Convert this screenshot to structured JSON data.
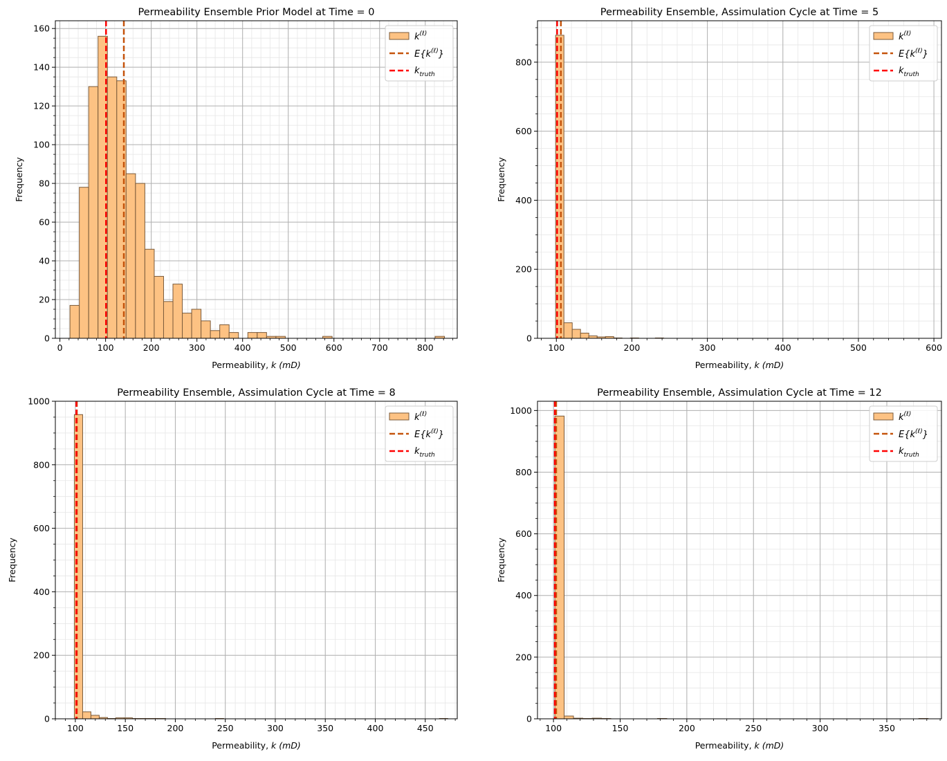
{
  "colors": {
    "bar_fill": "#fdc283",
    "bar_edge": "#7a5a3a",
    "mean_line": "#c5530b",
    "truth_line": "#ff0000",
    "grid_major": "#b0b0b0",
    "grid_minor": "#e6e6e6"
  },
  "legend_labels": {
    "ensemble": "k",
    "ensemble_sup": "(ℓ)",
    "mean_prefix": "E{k",
    "mean_sup": "(ℓ)",
    "mean_suffix": "}",
    "truth": "k",
    "truth_sub": "truth"
  },
  "chart_data": [
    {
      "type": "bar",
      "title": "Permeability Ensemble Prior Model at Time = 0",
      "xlabel_prefix": "Permeability, ",
      "xlabel_math": "k (mD)",
      "ylabel": "Frequency",
      "xlim": [
        -10,
        870
      ],
      "ylim": [
        0,
        164
      ],
      "xticks": [
        0,
        100,
        200,
        300,
        400,
        500,
        600,
        700,
        800
      ],
      "xminor_step": 20,
      "yticks": [
        0,
        20,
        40,
        60,
        80,
        100,
        120,
        140,
        160
      ],
      "yminor_step": 5,
      "legend_position": "top-right",
      "bin_width": 20.5,
      "bin_edges_start": 22,
      "values": [
        17,
        78,
        130,
        156,
        135,
        133,
        85,
        80,
        46,
        32,
        19,
        28,
        13,
        15,
        9,
        4,
        7,
        3,
        0,
        3,
        3,
        1,
        1,
        0,
        0,
        0,
        0,
        1,
        0,
        0,
        0,
        0,
        0,
        0,
        0,
        0,
        0,
        0,
        0,
        1
      ],
      "mean": 140,
      "truth": 101
    },
    {
      "type": "bar",
      "title": "Permeability Ensemble, Assimulation Cycle at Time = 5",
      "xlabel_prefix": "Permeability, ",
      "xlabel_math": "k (mD)",
      "ylabel": "Frequency",
      "xlim": [
        75,
        610
      ],
      "ylim": [
        0,
        920
      ],
      "xticks": [
        100,
        200,
        300,
        400,
        500,
        600
      ],
      "xminor_step": 20,
      "yticks": [
        0,
        200,
        400,
        600,
        800
      ],
      "yminor_step": 50,
      "legend_position": "top-right",
      "bin_width": 11,
      "bin_edges_start": 99,
      "values": [
        878,
        45,
        26,
        15,
        7,
        4,
        5,
        1,
        0,
        1,
        0,
        0,
        1,
        0,
        0,
        0,
        0,
        0,
        0,
        0,
        0,
        0,
        0,
        0,
        0,
        0,
        0,
        0,
        0,
        0,
        0,
        0,
        0,
        0,
        0,
        0,
        0,
        0,
        0,
        0,
        0,
        0,
        0,
        0,
        0,
        0
      ],
      "mean": 106,
      "truth": 101
    },
    {
      "type": "bar",
      "title": "Permeability Ensemble, Assimulation Cycle at Time = 8",
      "xlabel_prefix": "Permeability, ",
      "xlabel_math": "k (mD)",
      "ylabel": "Frequency",
      "xlim": [
        80,
        482
      ],
      "ylim": [
        0,
        1000
      ],
      "xticks": [
        100,
        150,
        200,
        250,
        300,
        350,
        400,
        450
      ],
      "xminor_step": 10,
      "yticks": [
        0,
        200,
        400,
        600,
        800,
        1000
      ],
      "yminor_step": 50,
      "legend_position": "top-right",
      "bin_width": 8.3,
      "bin_edges_start": 99,
      "values": [
        958,
        22,
        11,
        4,
        1,
        3,
        3,
        1,
        1,
        1,
        1,
        0,
        0,
        0,
        0,
        0,
        0,
        1,
        0,
        0,
        0,
        0,
        0,
        0,
        0,
        0,
        0,
        0,
        0,
        0,
        0,
        0,
        0,
        0,
        0,
        0,
        0,
        0,
        0,
        0,
        0,
        0,
        0,
        0,
        1
      ],
      "mean": 101.5,
      "truth": 101
    },
    {
      "type": "bar",
      "title": "Permeability Ensemble, Assimulation Cycle at Time = 12",
      "xlabel_prefix": "Permeability, ",
      "xlabel_math": "k (mD)",
      "ylabel": "Frequency",
      "xlim": [
        88,
        391
      ],
      "ylim": [
        0,
        1030
      ],
      "xticks": [
        100,
        150,
        200,
        250,
        300,
        350
      ],
      "xminor_step": 10,
      "yticks": [
        0,
        200,
        400,
        600,
        800,
        1000
      ],
      "yminor_step": 50,
      "legend_position": "top-right",
      "bin_width": 7.0,
      "bin_edges_start": 101,
      "values": [
        982,
        9,
        2,
        1,
        2,
        1,
        0,
        0,
        0,
        0,
        0,
        1,
        0,
        0,
        0,
        0,
        0,
        0,
        0,
        0,
        0,
        0,
        0,
        0,
        0,
        0,
        0,
        0,
        0,
        0,
        0,
        0,
        0,
        0,
        0,
        0,
        0,
        0,
        0,
        1
      ],
      "mean": 102,
      "truth": 101
    }
  ]
}
